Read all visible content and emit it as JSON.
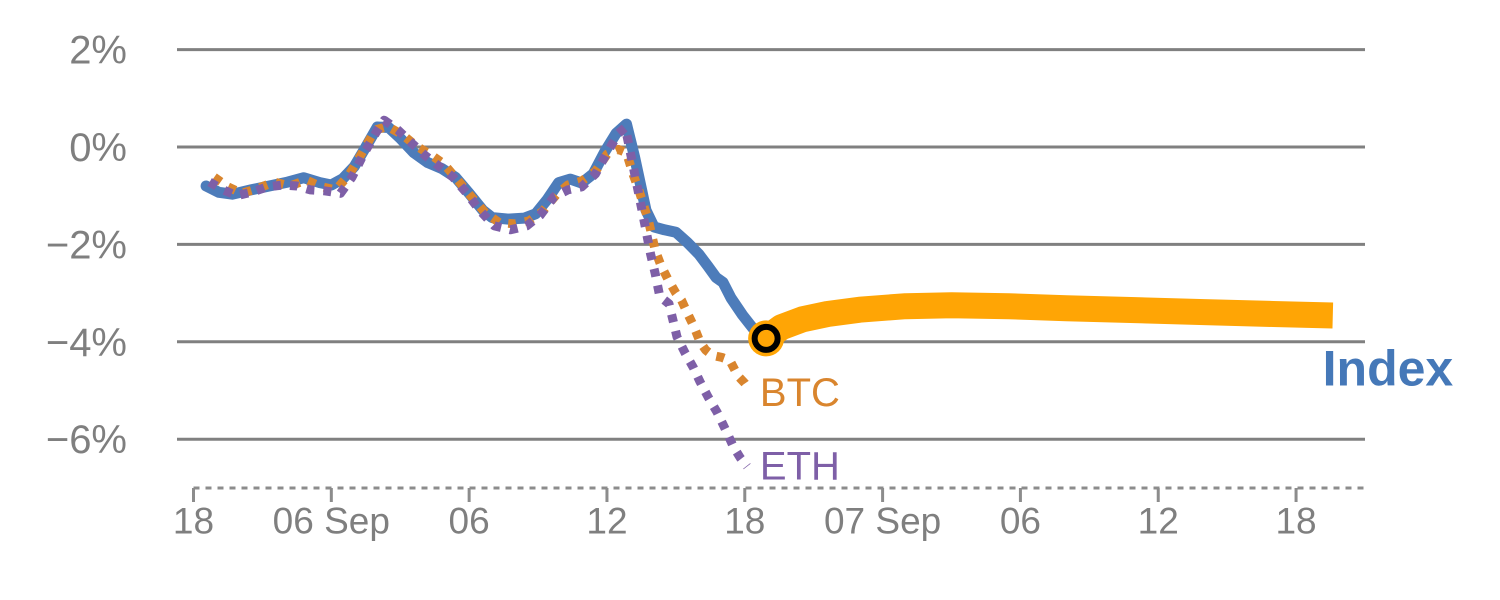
{
  "chart_data": {
    "type": "line",
    "title": "",
    "xlabel": "",
    "ylabel": "",
    "x_axis": {
      "unit": "hours_since_first_tick",
      "style": "dashed-line-with-ticks",
      "range": [
        0,
        51.1
      ],
      "ticks": [
        {
          "t": 0,
          "label": "18"
        },
        {
          "t": 6,
          "label": "06 Sep"
        },
        {
          "t": 12,
          "label": "06"
        },
        {
          "t": 18,
          "label": "12"
        },
        {
          "t": 24,
          "label": "18"
        },
        {
          "t": 30,
          "label": "07 Sep"
        },
        {
          "t": 36,
          "label": "06"
        },
        {
          "t": 42,
          "label": "12"
        },
        {
          "t": 48,
          "label": "18"
        }
      ]
    },
    "y_axis": {
      "range": [
        -7.0,
        2.1
      ],
      "gridlines": true,
      "ticks": [
        {
          "v": 2,
          "label": "2%"
        },
        {
          "v": 0,
          "label": "0%"
        },
        {
          "v": -2,
          "label": "−2%"
        },
        {
          "v": -4,
          "label": "−4%"
        },
        {
          "v": -6,
          "label": "−6%"
        }
      ]
    },
    "colors": {
      "index": "#4d7cba",
      "index_projection": "#ffa505",
      "btc": "#d9852e",
      "eth": "#7e5fa7",
      "grid": "#808080",
      "axis_text": "#7f7f7f",
      "marker_ring": "#000000"
    },
    "series": [
      {
        "name": "Index",
        "style": "solid",
        "color": "#4d7cba",
        "width": 11,
        "points": [
          [
            0.55,
            -0.8
          ],
          [
            1.1,
            -0.93
          ],
          [
            1.7,
            -0.97
          ],
          [
            2.5,
            -0.88
          ],
          [
            3.3,
            -0.8
          ],
          [
            4.1,
            -0.72
          ],
          [
            4.8,
            -0.63
          ],
          [
            5.5,
            -0.73
          ],
          [
            6.0,
            -0.78
          ],
          [
            6.5,
            -0.65
          ],
          [
            7.0,
            -0.4
          ],
          [
            7.5,
            0.0
          ],
          [
            8.0,
            0.41
          ],
          [
            8.5,
            0.4
          ],
          [
            9.0,
            0.18
          ],
          [
            9.6,
            -0.12
          ],
          [
            10.2,
            -0.32
          ],
          [
            10.8,
            -0.44
          ],
          [
            11.4,
            -0.62
          ],
          [
            12.0,
            -0.95
          ],
          [
            12.6,
            -1.3
          ],
          [
            13.0,
            -1.45
          ],
          [
            13.7,
            -1.48
          ],
          [
            14.4,
            -1.46
          ],
          [
            14.9,
            -1.37
          ],
          [
            15.4,
            -1.08
          ],
          [
            15.9,
            -0.73
          ],
          [
            16.4,
            -0.66
          ],
          [
            16.9,
            -0.74
          ],
          [
            17.4,
            -0.55
          ],
          [
            17.9,
            -0.1
          ],
          [
            18.4,
            0.28
          ],
          [
            18.85,
            0.47
          ],
          [
            19.2,
            -0.2
          ],
          [
            19.7,
            -1.3
          ],
          [
            20.05,
            -1.64
          ],
          [
            20.5,
            -1.7
          ],
          [
            21.0,
            -1.75
          ],
          [
            21.5,
            -1.96
          ],
          [
            22.0,
            -2.2
          ],
          [
            22.4,
            -2.45
          ],
          [
            22.75,
            -2.68
          ],
          [
            23.05,
            -2.78
          ],
          [
            23.4,
            -3.1
          ],
          [
            23.9,
            -3.45
          ],
          [
            24.4,
            -3.75
          ],
          [
            24.93,
            -3.93
          ]
        ]
      },
      {
        "name": "Index projection",
        "style": "solid",
        "color": "#ffa505",
        "width": 26,
        "points": [
          [
            24.93,
            -3.93
          ],
          [
            25.6,
            -3.7
          ],
          [
            26.5,
            -3.54
          ],
          [
            27.6,
            -3.43
          ],
          [
            29.0,
            -3.34
          ],
          [
            31.0,
            -3.27
          ],
          [
            33.0,
            -3.25
          ],
          [
            35.5,
            -3.27
          ],
          [
            38.0,
            -3.31
          ],
          [
            41.0,
            -3.35
          ],
          [
            44.0,
            -3.39
          ],
          [
            47.0,
            -3.43
          ],
          [
            49.6,
            -3.46
          ]
        ]
      },
      {
        "name": "BTC",
        "style": "dotted",
        "color": "#d9852e",
        "width": 9,
        "points": [
          [
            0.9,
            -0.62
          ],
          [
            1.5,
            -0.82
          ],
          [
            2.1,
            -0.95
          ],
          [
            2.8,
            -0.85
          ],
          [
            3.5,
            -0.72
          ],
          [
            4.2,
            -0.8
          ],
          [
            4.9,
            -0.68
          ],
          [
            5.6,
            -0.82
          ],
          [
            6.2,
            -0.88
          ],
          [
            6.8,
            -0.55
          ],
          [
            7.3,
            -0.15
          ],
          [
            7.9,
            0.35
          ],
          [
            8.45,
            0.42
          ],
          [
            9.1,
            0.25
          ],
          [
            9.7,
            0.02
          ],
          [
            10.3,
            -0.15
          ],
          [
            10.9,
            -0.35
          ],
          [
            11.5,
            -0.68
          ],
          [
            12.1,
            -1.02
          ],
          [
            12.7,
            -1.35
          ],
          [
            13.3,
            -1.55
          ],
          [
            14.0,
            -1.58
          ],
          [
            14.6,
            -1.52
          ],
          [
            15.2,
            -1.32
          ],
          [
            15.8,
            -0.98
          ],
          [
            16.3,
            -0.78
          ],
          [
            16.9,
            -0.7
          ],
          [
            17.5,
            -0.5
          ],
          [
            18.0,
            -0.15
          ],
          [
            18.5,
            -0.05
          ],
          [
            18.85,
            -0.12
          ],
          [
            19.15,
            -0.58
          ],
          [
            19.4,
            -0.9
          ],
          [
            19.6,
            -1.2
          ],
          [
            19.8,
            -1.5
          ],
          [
            19.95,
            -1.81
          ],
          [
            20.1,
            -2.12
          ],
          [
            20.35,
            -2.43
          ],
          [
            20.65,
            -2.71
          ],
          [
            21.0,
            -3.0
          ],
          [
            21.25,
            -3.15
          ],
          [
            21.5,
            -3.41
          ],
          [
            21.8,
            -3.7
          ],
          [
            22.05,
            -4.0
          ],
          [
            22.3,
            -4.17
          ],
          [
            22.6,
            -4.28
          ],
          [
            23.0,
            -4.32
          ],
          [
            23.35,
            -4.38
          ],
          [
            23.7,
            -4.7
          ],
          [
            24.0,
            -4.85
          ],
          [
            24.2,
            -4.99
          ]
        ]
      },
      {
        "name": "ETH",
        "style": "dotted",
        "color": "#7e5fa7",
        "width": 9,
        "points": [
          [
            0.7,
            -0.72
          ],
          [
            1.3,
            -0.88
          ],
          [
            1.9,
            -1.0
          ],
          [
            2.6,
            -0.92
          ],
          [
            3.2,
            -0.82
          ],
          [
            3.9,
            -0.78
          ],
          [
            4.5,
            -0.8
          ],
          [
            5.1,
            -0.88
          ],
          [
            5.7,
            -0.9
          ],
          [
            6.4,
            -0.95
          ],
          [
            6.9,
            -0.62
          ],
          [
            7.4,
            -0.15
          ],
          [
            7.95,
            0.3
          ],
          [
            8.3,
            0.55
          ],
          [
            8.9,
            0.35
          ],
          [
            9.5,
            0.08
          ],
          [
            10.1,
            -0.18
          ],
          [
            10.7,
            -0.4
          ],
          [
            11.3,
            -0.62
          ],
          [
            11.9,
            -0.95
          ],
          [
            12.5,
            -1.32
          ],
          [
            13.1,
            -1.62
          ],
          [
            13.8,
            -1.7
          ],
          [
            14.5,
            -1.62
          ],
          [
            15.1,
            -1.4
          ],
          [
            15.7,
            -1.02
          ],
          [
            16.3,
            -0.88
          ],
          [
            16.9,
            -0.82
          ],
          [
            17.5,
            -0.55
          ],
          [
            18.0,
            -0.12
          ],
          [
            18.5,
            0.28
          ],
          [
            18.8,
            0.4
          ],
          [
            19.1,
            -0.3
          ],
          [
            19.4,
            -1.0
          ],
          [
            19.65,
            -1.6
          ],
          [
            19.9,
            -2.2
          ],
          [
            20.1,
            -2.6
          ],
          [
            20.3,
            -3.07
          ],
          [
            20.7,
            -3.22
          ],
          [
            21.05,
            -3.9
          ],
          [
            21.4,
            -4.23
          ],
          [
            21.75,
            -4.52
          ],
          [
            22.05,
            -4.82
          ],
          [
            22.4,
            -5.13
          ],
          [
            22.8,
            -5.45
          ],
          [
            23.2,
            -5.84
          ],
          [
            23.5,
            -6.15
          ],
          [
            23.8,
            -6.38
          ],
          [
            24.1,
            -6.56
          ]
        ]
      }
    ],
    "marker": {
      "name": "divergence-point",
      "t": 24.93,
      "value": -3.93,
      "fill": "#ffa505",
      "ring_color": "#000000"
    },
    "annotations": [
      {
        "id": "btc-label",
        "text": "BTC",
        "t": 26.4,
        "v": -5.05,
        "color": "#d9852e",
        "size": 40,
        "weight": "normal"
      },
      {
        "id": "eth-label",
        "text": "ETH",
        "t": 26.4,
        "v": -6.56,
        "color": "#7e5fa7",
        "size": 40,
        "weight": "normal"
      },
      {
        "id": "index-label",
        "text": "Index",
        "t": 52.0,
        "v": -4.55,
        "color": "#4578b8",
        "size": 50,
        "weight": "bold"
      }
    ],
    "legend_position": "inline-end-of-series"
  }
}
